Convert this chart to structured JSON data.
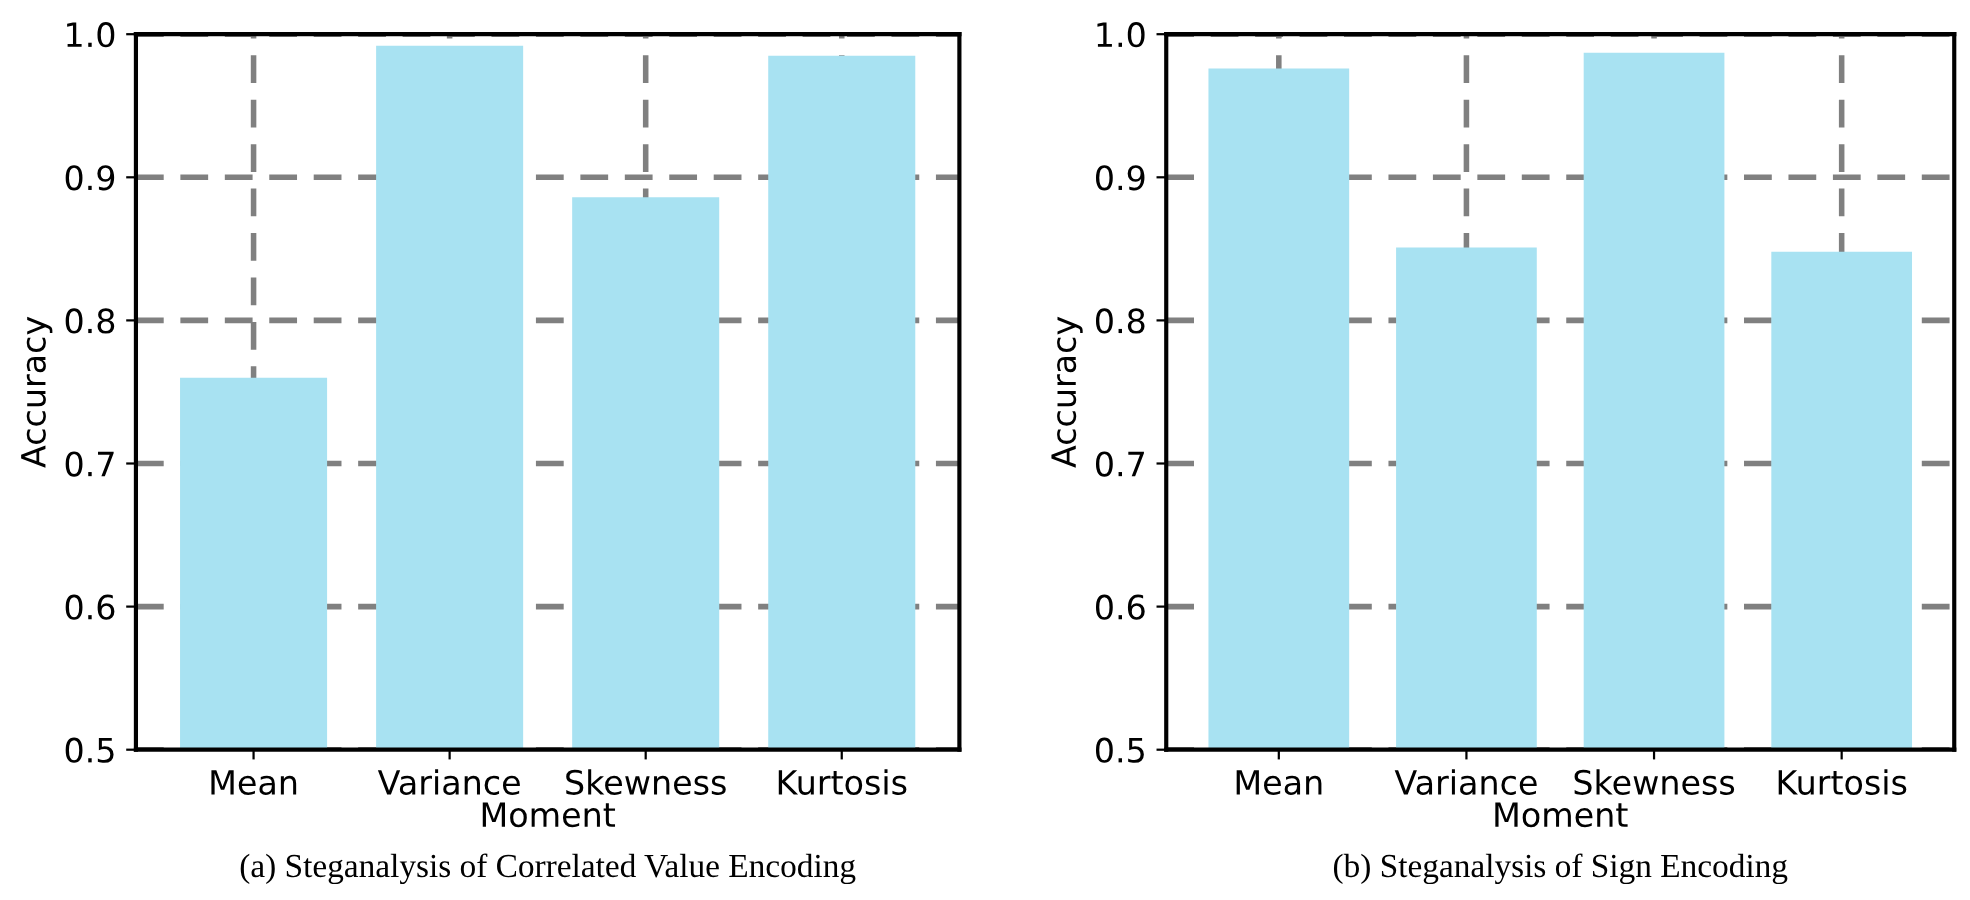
{
  "chart_data": [
    {
      "type": "bar",
      "categories": [
        "Mean",
        "Variance",
        "Skewness",
        "Kurtosis"
      ],
      "values": [
        0.76,
        0.992,
        0.886,
        0.985
      ],
      "color": "#a8e2f2",
      "xlabel": "Moment",
      "ylabel": "Accuracy",
      "ylim": [
        0.5,
        1.0
      ],
      "yticks": [
        0.5,
        0.6,
        0.7,
        0.8,
        0.9,
        {
          "value": 1.0,
          "label": "1.0"
        }
      ],
      "grid": true,
      "annotations": [
        "(a) Steganalysis of Correlated Value Encoding"
      ]
    },
    {
      "type": "bar",
      "categories": [
        "Mean",
        "Variance",
        "Skewness",
        "Kurtosis"
      ],
      "values": [
        0.976,
        0.851,
        0.987,
        0.848
      ],
      "color": "#a8e2f2",
      "xlabel": "Moment",
      "ylabel": "Accuracy",
      "ylim": [
        0.5,
        1.0
      ],
      "yticks": [
        0.5,
        0.6,
        0.7,
        0.8,
        0.9,
        {
          "value": 1.0,
          "label": "1.0"
        }
      ],
      "grid": true,
      "annotations": [
        "(b) Steganalysis of Sign Encoding"
      ]
    }
  ]
}
